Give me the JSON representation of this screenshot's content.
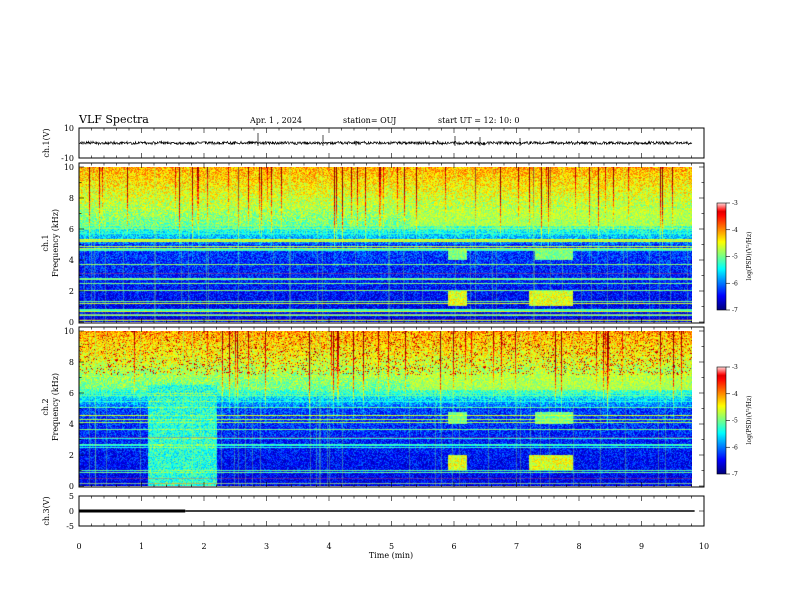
{
  "header": {
    "title": "VLF Spectra",
    "date": "Apr. 1 , 2024",
    "station": "station= OUJ",
    "start": "start UT =  12: 10: 0"
  },
  "chart_data": [
    {
      "type": "line",
      "name": "ch1-waveform",
      "ylabel": "ch.1(V)",
      "ylim": [
        -10,
        10
      ],
      "yticks": [
        "10",
        "-10"
      ],
      "xlim": [
        0,
        10
      ],
      "level": 0,
      "color": "#000000"
    },
    {
      "type": "heatmap",
      "name": "ch1-spectrogram",
      "ylabel": "ch.1\nFrequency (kHz)",
      "ylim": [
        0,
        10
      ],
      "yticks": [
        "0",
        "2",
        "4",
        "6",
        "8",
        "10"
      ],
      "xlim": [
        0,
        10
      ],
      "colorbar": {
        "label": "log(PSD)(V²/Hz)",
        "range": [
          -7,
          -3
        ],
        "ticks": [
          "-3",
          "-4",
          "-5",
          "-6",
          "-7"
        ]
      }
    },
    {
      "type": "heatmap",
      "name": "ch2-spectrogram",
      "ylabel": "ch.2\nFrequency (kHz)",
      "ylim": [
        0,
        10
      ],
      "yticks": [
        "0",
        "2",
        "4",
        "6",
        "8",
        "10"
      ],
      "xlim": [
        0,
        10
      ],
      "colorbar": {
        "label": "log(PSD)(V²/Hz)",
        "range": [
          -7,
          -3
        ],
        "ticks": [
          "-3",
          "-4",
          "-5",
          "-6",
          "-7"
        ]
      }
    },
    {
      "type": "line",
      "name": "ch3-level",
      "ylabel": "ch.3(V)",
      "ylim": [
        -5,
        5
      ],
      "yticks": [
        "5",
        "0",
        "-5"
      ],
      "xlim": [
        0,
        10
      ],
      "xlabel": "Time (min)",
      "xticks": [
        "0",
        "1",
        "2",
        "3",
        "4",
        "5",
        "6",
        "7",
        "8",
        "9",
        "10"
      ],
      "series": [
        {
          "x": [
            0,
            1.7
          ],
          "y": [
            0,
            0
          ]
        },
        {
          "x": [
            1.7,
            9.85
          ],
          "y": [
            0,
            0
          ]
        }
      ]
    }
  ]
}
